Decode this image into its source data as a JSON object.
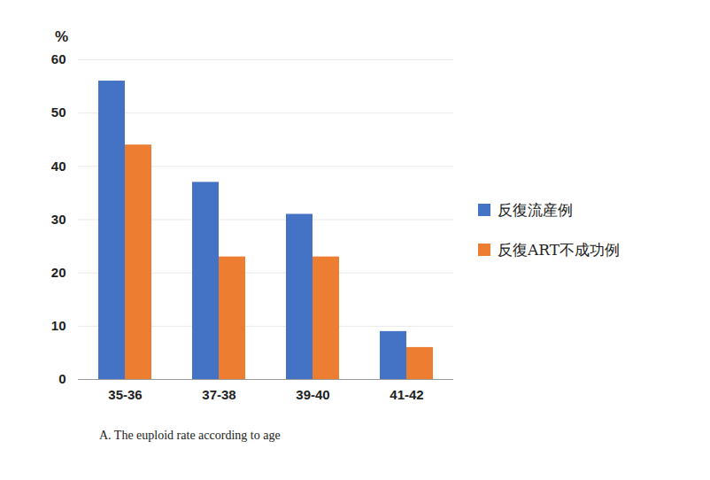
{
  "chart_data": {
    "type": "bar",
    "caption": "A. The euploid rate according to age",
    "y_label": "%",
    "categories": [
      "35-36",
      "37-38",
      "39-40",
      "41-42"
    ],
    "series": [
      {
        "name": "反復流産例",
        "color": "#4472c4",
        "values": [
          56,
          37,
          31,
          9
        ]
      },
      {
        "name": "反復ART不成功例",
        "color": "#ed7d31",
        "values": [
          44,
          23,
          23,
          6
        ]
      }
    ],
    "ylim": [
      0,
      60
    ],
    "yticks": [
      0,
      10,
      20,
      30,
      40,
      50,
      60
    ],
    "grid": true,
    "legend": "right"
  }
}
